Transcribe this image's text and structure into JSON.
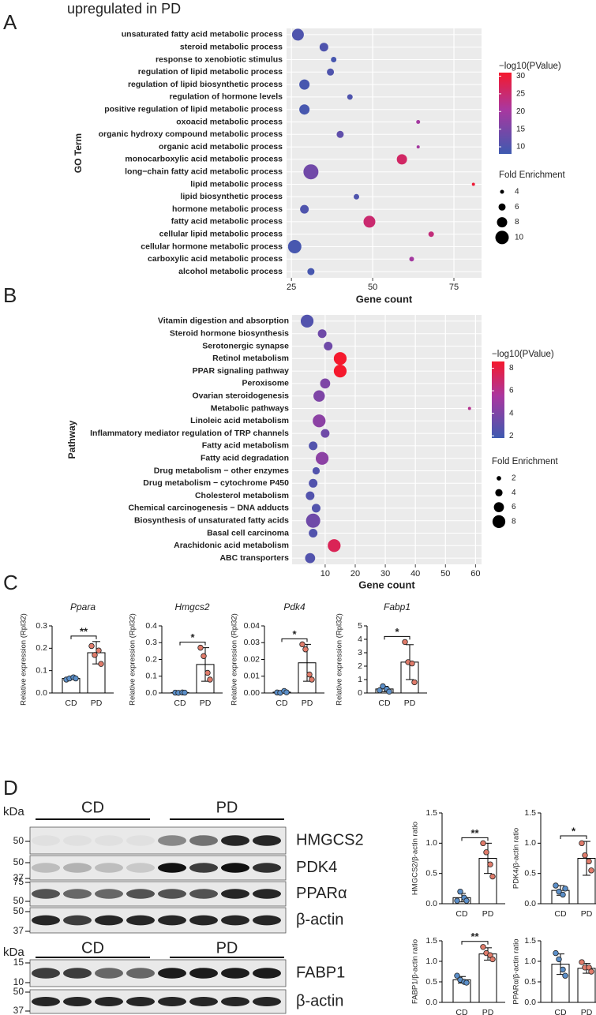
{
  "panels": [
    "A",
    "B",
    "C",
    "D"
  ],
  "chart_data": [
    {
      "type": "dot",
      "title": "upregulated in PD",
      "xlabel": "Gene count",
      "ylabel": "GO Term",
      "categories": [
        "unsaturated fatty acid metabolic process",
        "steroid metabolic process",
        "response to xenobiotic stimulus",
        "regulation of lipid metabolic process",
        "regulation of lipid biosynthetic process",
        "regulation of hormone levels",
        "positive regulation of lipid metabolic process",
        "oxoacid metabolic process",
        "organic hydroxy compound metabolic process",
        "organic acid metabolic process",
        "monocarboxylic acid metabolic process",
        "long−chain fatty acid metabolic process",
        "lipid metabolic process",
        "lipid biosynthetic process",
        "hormone metabolic process",
        "fatty acid metabolic process",
        "cellular lipid metabolic process",
        "cellular hormone metabolic process",
        "carboxylic acid metabolic process",
        "alcohol metabolic process"
      ],
      "values": [
        27,
        35,
        38,
        37,
        29,
        43,
        29,
        64,
        40,
        64,
        59,
        31,
        81,
        45,
        29,
        49,
        68,
        26,
        62,
        31
      ],
      "neg_log10_p": [
        10,
        10,
        9,
        10,
        9,
        10,
        9,
        20,
        12,
        20,
        26,
        14,
        30,
        10,
        10,
        25,
        24,
        9,
        20,
        9
      ],
      "fold_enrichment": [
        9,
        7,
        5,
        6,
        8,
        5,
        8,
        4,
        6,
        3.5,
        8,
        11,
        3.5,
        5,
        7,
        9,
        5,
        10,
        4.5,
        6
      ],
      "xlim": [
        23.5,
        83.5
      ],
      "xticks": [
        25,
        50,
        75
      ],
      "grid": true,
      "color_label": "−log10(PValue)",
      "color_lim": [
        8,
        31
      ],
      "color_ticks": [
        10,
        15,
        20,
        25,
        30
      ],
      "size_label": "Fold Enrichment",
      "size_ticks": [
        4,
        6,
        8,
        10
      ]
    },
    {
      "type": "dot",
      "xlabel": "Gene count",
      "ylabel": "Pathway",
      "categories": [
        "Vitamin digestion and absorption",
        "Steroid hormone biosynthesis",
        "Serotonergic synapse",
        "Retinol metabolism",
        "PPAR signaling pathway",
        "Peroxisome",
        "Ovarian steroidogenesis",
        "Metabolic pathways",
        "Linoleic acid metabolism",
        "Inflammatory mediator regulation of TRP channels",
        "Fatty acid metabolism",
        "Fatty acid degradation",
        "Drug metabolism − other enzymes",
        "Drug metabolism − cytochrome P450",
        "Cholesterol metabolism",
        "Chemical carcinogenesis − DNA adducts",
        "Biosynthesis of unsaturated fatty acids",
        "Basal cell carcinoma",
        "Arachidonic acid metabolism",
        "ABC transporters"
      ],
      "values": [
        4,
        9,
        11,
        15,
        15,
        10,
        8,
        58,
        8,
        10,
        6,
        9,
        7,
        6,
        5,
        7,
        6,
        6,
        13,
        5
      ],
      "neg_log10_p": [
        2.5,
        3.5,
        3.5,
        8.6,
        8.6,
        4,
        4,
        6,
        4.5,
        3.5,
        2.5,
        4.5,
        2.5,
        2.5,
        2.5,
        2.5,
        3.5,
        2.5,
        7.5,
        2.5
      ],
      "fold_enrichment": [
        8,
        5,
        5,
        8,
        8,
        6,
        7,
        1,
        8,
        5,
        5,
        8,
        4,
        5,
        5,
        5,
        9,
        5,
        8,
        6
      ],
      "xlim": [
        -1,
        62
      ],
      "xticks": [
        10,
        20,
        30,
        40,
        50,
        60
      ],
      "grid": true,
      "color_label": "−log10(PValue)",
      "color_lim": [
        1.8,
        8.6
      ],
      "color_ticks": [
        2,
        4,
        6,
        8
      ],
      "size_label": "Fold Enrichment",
      "size_ticks": [
        2,
        4,
        6,
        8
      ]
    },
    {
      "type": "bar",
      "title": "Ppara",
      "ylabel": "Relative expression (Rpl32)",
      "categories": [
        "CD",
        "PD"
      ],
      "values": [
        0.065,
        0.18
      ],
      "errors": [
        0.005,
        0.05
      ],
      "points": [
        [
          0.06,
          0.065,
          0.07,
          0.065
        ],
        [
          0.21,
          0.17,
          0.19,
          0.13
        ]
      ],
      "colors": [
        "#5b8fc9",
        "#e07b6a"
      ],
      "significance": "**",
      "ylim": [
        0,
        0.3
      ],
      "yticks": [
        {
          "value": 0,
          "label": "0.0"
        },
        0.1,
        0.2,
        0.3
      ]
    },
    {
      "type": "bar",
      "title": "Hmgcs2",
      "ylabel": "Relative expression (Rpl32)",
      "categories": [
        "CD",
        "PD"
      ],
      "values": [
        0.002,
        0.17
      ],
      "errors": [
        0.001,
        0.1
      ],
      "points": [
        [
          0.002,
          0.001,
          0.003,
          0.002
        ],
        [
          0.27,
          0.22,
          0.12,
          0.08
        ]
      ],
      "colors": [
        "#5b8fc9",
        "#e07b6a"
      ],
      "significance": "*",
      "ylim": [
        0,
        0.4
      ],
      "yticks": [
        {
          "value": 0,
          "label": "0.0"
        },
        0.1,
        0.2,
        0.3,
        0.4
      ]
    },
    {
      "type": "bar",
      "title": "Pdk4",
      "ylabel": "Relative expression (Rpl32)",
      "categories": [
        "CD",
        "PD"
      ],
      "values": [
        0.0005,
        0.018
      ],
      "errors": [
        0.0005,
        0.011
      ],
      "points": [
        [
          0.0003,
          0.0001,
          0.0012,
          0.0004
        ],
        [
          0.029,
          0.026,
          0.011,
          0.008
        ]
      ],
      "colors": [
        "#5b8fc9",
        "#e07b6a"
      ],
      "significance": "*",
      "ylim": [
        0,
        0.04
      ],
      "yticks": [
        {
          "value": 0,
          "label": "0.00"
        },
        0.01,
        0.02,
        0.03,
        0.04
      ]
    },
    {
      "type": "bar",
      "title": "Fabp1",
      "ylabel": "Relative expression (Rpl32)",
      "categories": [
        "CD",
        "PD"
      ],
      "values": [
        0.3,
        2.3
      ],
      "errors": [
        0.2,
        1.3
      ],
      "points": [
        [
          0.2,
          0.5,
          0.3,
          0.1
        ],
        [
          3.8,
          2.3,
          2.2,
          0.8
        ]
      ],
      "colors": [
        "#5b8fc9",
        "#e07b6a"
      ],
      "significance": "*",
      "ylim": [
        0,
        5
      ],
      "yticks": [
        0,
        1,
        2,
        3,
        4,
        5
      ]
    },
    {
      "type": "bar",
      "ylabel": "HMGCS2/β-actin ratio",
      "categories": [
        "CD",
        "PD"
      ],
      "values": [
        0.1,
        0.75
      ],
      "errors": [
        0.07,
        0.25
      ],
      "points": [
        [
          0.05,
          0.2,
          0.1,
          0.05
        ],
        [
          1.0,
          0.85,
          0.65,
          0.45
        ]
      ],
      "colors": [
        "#5b8fc9",
        "#e07b6a"
      ],
      "significance": "**",
      "ylim": [
        0,
        1.5
      ],
      "yticks": [
        {
          "value": 0,
          "label": "0.0"
        },
        0.5,
        {
          "value": 1,
          "label": "1.0"
        },
        1.5
      ]
    },
    {
      "type": "bar",
      "ylabel": "PDK4/β-actin ratio",
      "categories": [
        "CD",
        "PD"
      ],
      "values": [
        0.22,
        0.75
      ],
      "errors": [
        0.08,
        0.28
      ],
      "points": [
        [
          0.3,
          0.2,
          0.15,
          0.25
        ],
        [
          1.0,
          0.8,
          0.7,
          0.55
        ]
      ],
      "colors": [
        "#5b8fc9",
        "#e07b6a"
      ],
      "significance": "*",
      "ylim": [
        0,
        1.5
      ],
      "yticks": [
        {
          "value": 0,
          "label": "0.0"
        },
        0.5,
        {
          "value": 1,
          "label": "1.0"
        },
        1.5
      ]
    },
    {
      "type": "bar",
      "ylabel": "FABP1/β-actin ratio",
      "categories": [
        "CD",
        "PD"
      ],
      "values": [
        0.55,
        1.18
      ],
      "errors": [
        0.08,
        0.15
      ],
      "points": [
        [
          0.65,
          0.55,
          0.5,
          0.48
        ],
        [
          1.35,
          1.2,
          1.15,
          1.05
        ]
      ],
      "colors": [
        "#5b8fc9",
        "#e07b6a"
      ],
      "significance": "**",
      "ylim": [
        0,
        1.5
      ],
      "yticks": [
        {
          "value": 0,
          "label": "0.0"
        },
        0.5,
        {
          "value": 1,
          "label": "1.0"
        },
        1.5
      ]
    },
    {
      "type": "bar",
      "ylabel": "PPARα/β-actin ratio",
      "categories": [
        "CD",
        "PD"
      ],
      "values": [
        0.93,
        0.83
      ],
      "errors": [
        0.25,
        0.12
      ],
      "points": [
        [
          1.2,
          1.05,
          0.8,
          0.65
        ],
        [
          0.98,
          0.85,
          0.85,
          0.75
        ]
      ],
      "colors": [
        "#5b8fc9",
        "#e07b6a"
      ],
      "ylim": [
        0,
        1.5
      ],
      "yticks": [
        {
          "value": 0,
          "label": "0.0"
        },
        0.5,
        {
          "value": 1,
          "label": "1.0"
        },
        1.5
      ]
    }
  ],
  "blots": [
    {
      "unit": "kDa",
      "groups": [
        "CD",
        "PD"
      ],
      "rows": [
        {
          "name": "HMGCS2",
          "markers": [
            "50"
          ]
        },
        {
          "name": "PDK4",
          "markers": [
            "50",
            "37"
          ]
        },
        {
          "name": "PPARα",
          "markers": [
            "75",
            "50"
          ]
        },
        {
          "name": "β-actin",
          "markers": [
            "50",
            "37"
          ]
        }
      ]
    },
    {
      "unit": "kDa",
      "groups": [
        "CD",
        "PD"
      ],
      "rows": [
        {
          "name": "FABP1",
          "markers": [
            "15",
            "10"
          ]
        },
        {
          "name": "β-actin",
          "markers": [
            "50",
            "37"
          ]
        }
      ]
    }
  ]
}
